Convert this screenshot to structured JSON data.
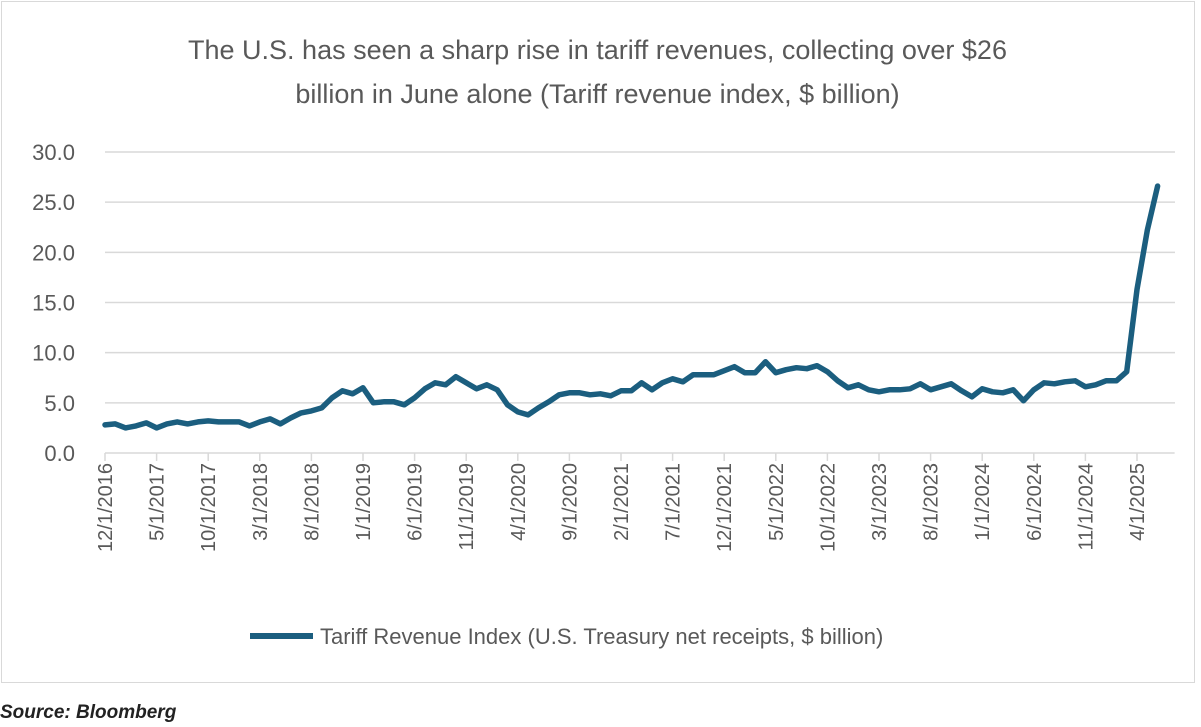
{
  "chart_data": {
    "type": "line",
    "title_line1": "The U.S. has seen a sharp rise in tariff revenues, collecting over $26",
    "title_line2": "billion in June alone (Tariff revenue index, $ billion)",
    "xlabel": "",
    "ylabel": "",
    "ylim": [
      0,
      30
    ],
    "y_ticks": [
      "0.0",
      "5.0",
      "10.0",
      "15.0",
      "20.0",
      "25.0",
      "30.0"
    ],
    "x_start": "12/1/2016",
    "x_end": "6/1/2025",
    "x_tick_labels": [
      "12/1/2016",
      "5/1/2017",
      "10/1/2017",
      "3/1/2018",
      "8/1/2018",
      "1/1/2019",
      "6/1/2019",
      "11/1/2019",
      "4/1/2020",
      "9/1/2020",
      "2/1/2021",
      "7/1/2021",
      "12/1/2021",
      "5/1/2022",
      "10/1/2022",
      "3/1/2023",
      "8/1/2023",
      "1/1/2024",
      "6/1/2024",
      "11/1/2024",
      "4/1/2025"
    ],
    "grid": true,
    "legend_position": "bottom",
    "series": [
      {
        "name": "Tariff Revenue Index (U.S. Treasury net receipts, $ billion)",
        "color": "#1b5e7f",
        "values": [
          2.8,
          2.9,
          2.5,
          2.7,
          3.0,
          2.5,
          2.9,
          3.1,
          2.9,
          3.1,
          3.2,
          3.1,
          3.1,
          3.1,
          2.7,
          3.1,
          3.4,
          2.9,
          3.5,
          4.0,
          4.2,
          4.5,
          5.5,
          6.2,
          5.9,
          6.5,
          5.0,
          5.1,
          5.1,
          4.8,
          5.5,
          6.4,
          7.0,
          6.8,
          7.6,
          7.0,
          6.4,
          6.8,
          6.3,
          4.8,
          4.1,
          3.8,
          4.5,
          5.1,
          5.8,
          6.0,
          6.0,
          5.8,
          5.9,
          5.7,
          6.2,
          6.2,
          7.0,
          6.3,
          7.0,
          7.4,
          7.1,
          7.8,
          7.8,
          7.8,
          8.2,
          8.6,
          8.0,
          8.0,
          9.1,
          8.0,
          8.3,
          8.5,
          8.4,
          8.7,
          8.1,
          7.2,
          6.5,
          6.8,
          6.3,
          6.1,
          6.3,
          6.3,
          6.4,
          6.9,
          6.3,
          6.6,
          6.9,
          6.2,
          5.6,
          6.4,
          6.1,
          6.0,
          6.3,
          5.2,
          6.3,
          7.0,
          6.9,
          7.1,
          7.2,
          6.6,
          6.8,
          7.2,
          7.2,
          8.1,
          16.3,
          22.2,
          26.6
        ]
      }
    ]
  },
  "source": "Source: Bloomberg"
}
